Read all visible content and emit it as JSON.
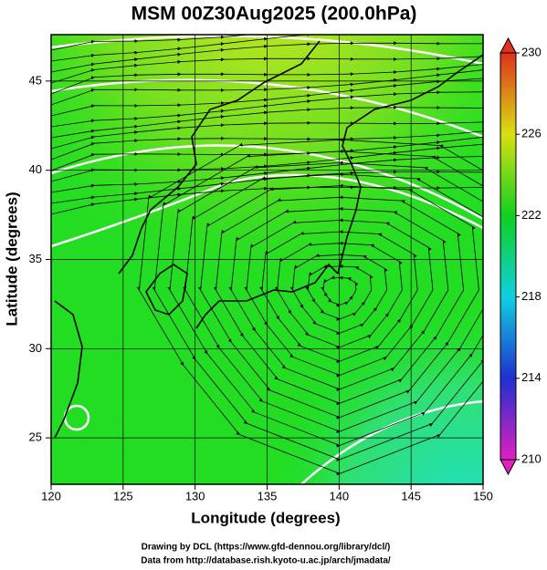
{
  "chart_data": {
    "type": "map",
    "title": "MSM 00Z30Aug2025 (200.0hPa)",
    "x_label": "Longitude (degrees)",
    "y_label": "Latitude (degrees)",
    "xlim": [
      120,
      150
    ],
    "xticks": [
      120,
      125,
      130,
      135,
      140,
      145,
      150
    ],
    "ylim": [
      22.4,
      47.6
    ],
    "yticks": [
      25,
      30,
      35,
      40,
      45
    ],
    "grid": true,
    "colorbar": {
      "lim": [
        210,
        230
      ],
      "ticks": [
        210,
        214,
        218,
        222,
        226,
        230
      ],
      "colors": [
        "#e020c0",
        "#2030d0",
        "#10d0e0",
        "#10d020",
        "#d8e010",
        "#e03020"
      ]
    },
    "credits": [
      "Drawing by DCL (https://www.gfd-dennou.org/library/dcl/)",
      "Data from http://database.rish.kyoto-u.ac.jp/arch/jmadata/"
    ]
  }
}
